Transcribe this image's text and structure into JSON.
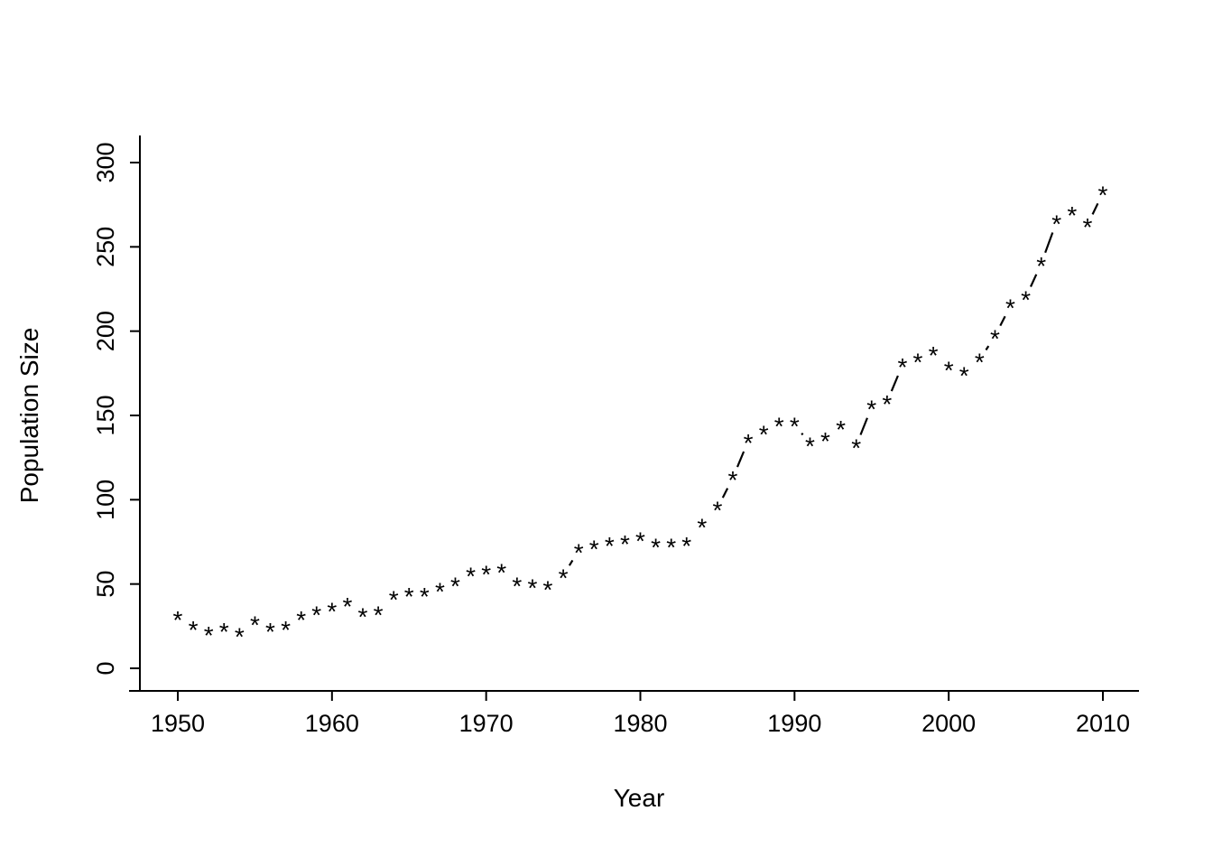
{
  "chart_data": {
    "type": "scatter",
    "title": "",
    "xlabel": "Year",
    "ylabel": "Population Size",
    "marker": "*",
    "color": "#000000",
    "background": "#ffffff",
    "grid": false,
    "legend": "none",
    "xlim": [
      1950,
      2010
    ],
    "ylim": [
      0,
      300
    ],
    "x_ticks": [
      1950,
      1960,
      1970,
      1980,
      1990,
      2000,
      2010
    ],
    "y_ticks": [
      0,
      50,
      100,
      150,
      200,
      250,
      300
    ],
    "x": [
      1950,
      1951,
      1952,
      1953,
      1954,
      1955,
      1956,
      1957,
      1958,
      1959,
      1960,
      1961,
      1962,
      1963,
      1964,
      1965,
      1966,
      1967,
      1968,
      1969,
      1970,
      1971,
      1972,
      1973,
      1974,
      1975,
      1976,
      1977,
      1978,
      1979,
      1980,
      1981,
      1982,
      1983,
      1984,
      1985,
      1986,
      1987,
      1988,
      1989,
      1990,
      1991,
      1992,
      1993,
      1994,
      1995,
      1996,
      1997,
      1998,
      1999,
      2000,
      2001,
      2002,
      2003,
      2004,
      2005,
      2006,
      2007,
      2008,
      2009,
      2010
    ],
    "values": [
      30,
      24,
      21,
      23,
      20,
      27,
      23,
      24,
      30,
      33,
      35,
      38,
      32,
      33,
      42,
      44,
      44,
      47,
      50,
      56,
      57,
      58,
      50,
      49,
      48,
      55,
      70,
      72,
      74,
      75,
      77,
      73,
      73,
      74,
      85,
      95,
      113,
      135,
      140,
      145,
      145,
      133,
      136,
      143,
      132,
      155,
      158,
      180,
      183,
      187,
      178,
      175,
      183,
      197,
      215,
      220,
      240,
      265,
      270,
      263,
      282
    ],
    "line_style": "segments-between-distant-points"
  }
}
